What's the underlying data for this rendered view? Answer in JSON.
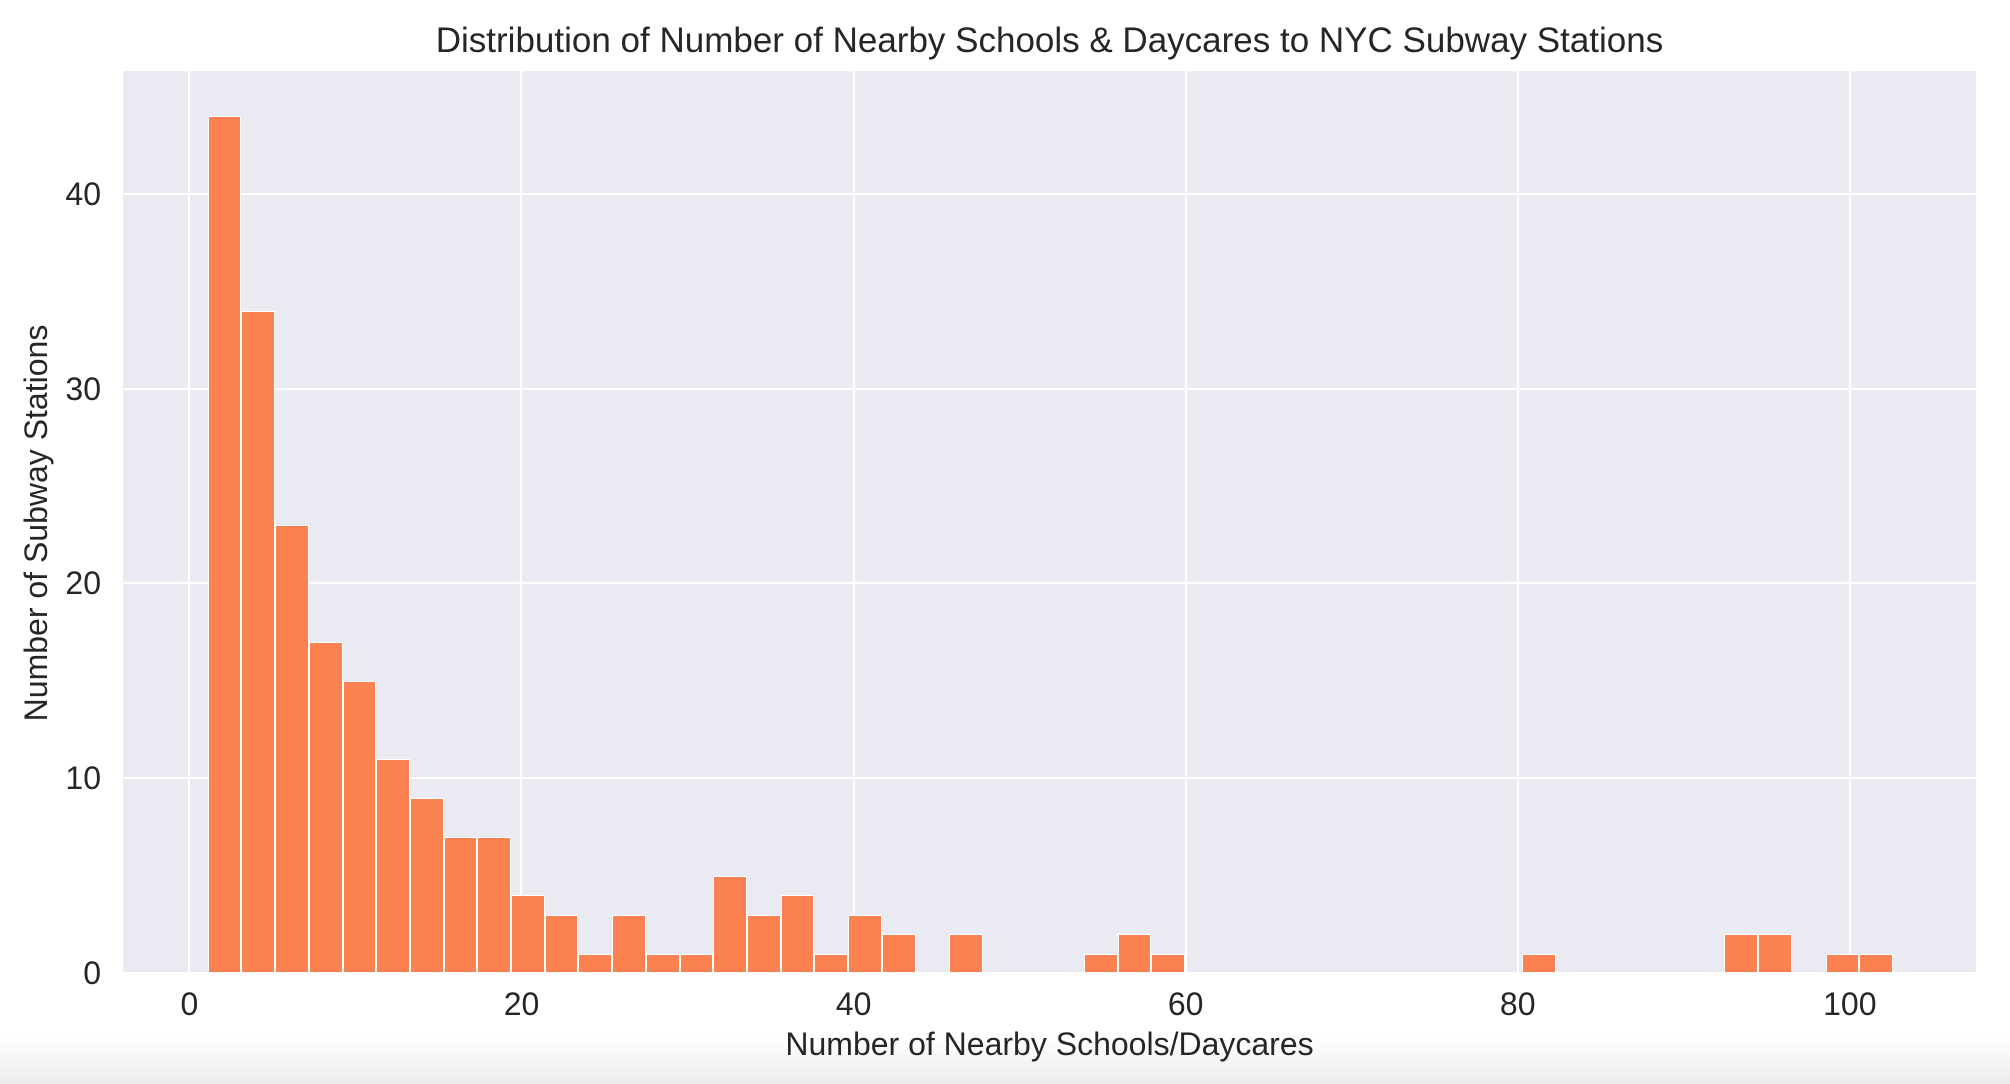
{
  "chart_data": {
    "type": "bar",
    "variant": "histogram",
    "title": "Distribution of Number of Nearby Schools & Daycares to NYC Subway Stations",
    "xlabel": "Number of Nearby Schools/Daycares",
    "ylabel": "Number of Subway Stations",
    "xticks": [
      0,
      20,
      40,
      60,
      80,
      100
    ],
    "yticks": [
      0,
      10,
      20,
      30,
      40
    ],
    "xlim": [
      -4,
      107.6
    ],
    "ylim": [
      0,
      46.3
    ],
    "grid": true,
    "legend": "none",
    "bins": {
      "start": 1.1,
      "width": 2.03,
      "counts": [
        44,
        34,
        23,
        17,
        15,
        11,
        9,
        7,
        7,
        4,
        3,
        1,
        3,
        1,
        1,
        5,
        3,
        4,
        1,
        3,
        2,
        0,
        2,
        0,
        0,
        0,
        1,
        2,
        1,
        0,
        0,
        0,
        0,
        0,
        0,
        0,
        0,
        0,
        0,
        1,
        0,
        0,
        0,
        0,
        0,
        2,
        2,
        0,
        1,
        1
      ]
    },
    "colors": {
      "bar_fill": "#FC8151",
      "bar_edge": "#FFFFFF",
      "plot_bg": "#EAEAF2",
      "grid_line": "#FFFFFF",
      "text": "#262626",
      "figure_bg": "#FFFFFF"
    }
  }
}
